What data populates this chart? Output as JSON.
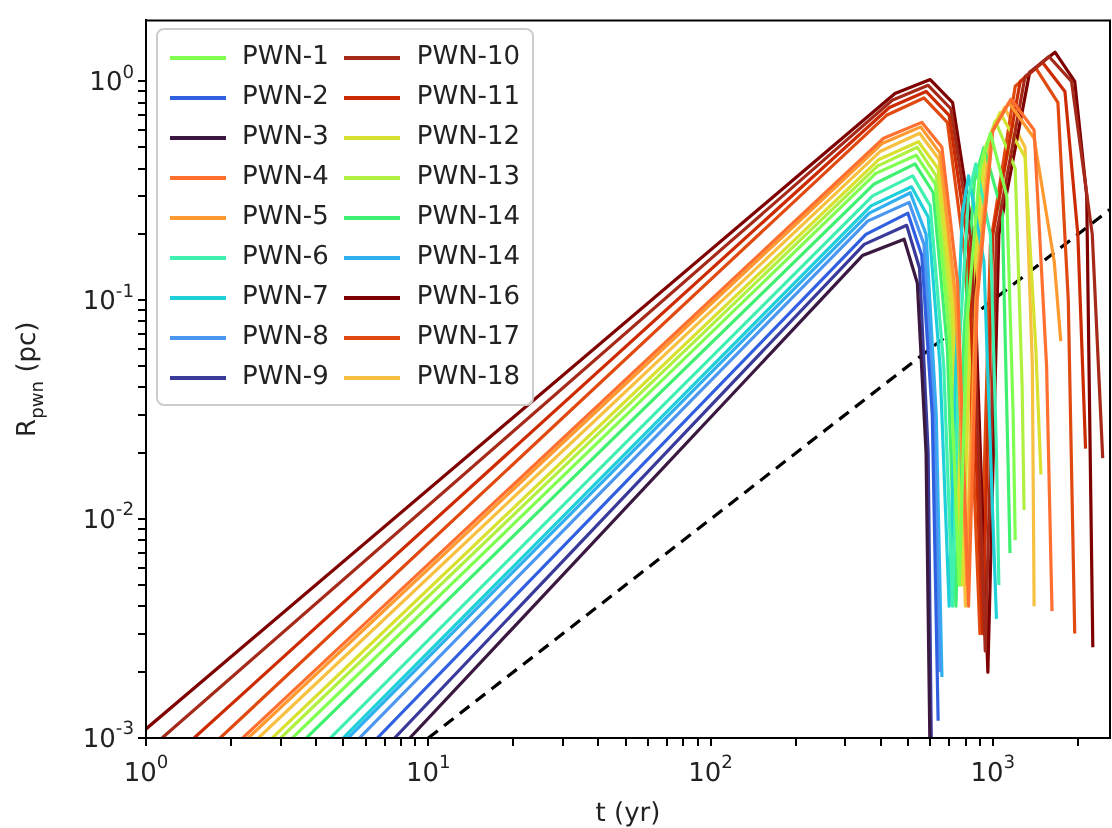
{
  "chart_data": {
    "type": "line",
    "xlabel": "t (yr)",
    "ylabel": "R$_{pwn}$ (pc)",
    "log": "xy",
    "grid": false,
    "legend": "top left",
    "marker": "none",
    "xlim": [
      1,
      2600
    ],
    "ylim": [
      0.001,
      1.9
    ],
    "xticks": [
      {
        "value": 1,
        "label": "10$^{0}$"
      },
      {
        "value": 2,
        "label": null
      },
      {
        "value": 3,
        "label": null
      },
      {
        "value": 4,
        "label": null
      },
      {
        "value": 5,
        "label": null
      },
      {
        "value": 6,
        "label": null
      },
      {
        "value": 7,
        "label": null
      },
      {
        "value": 8,
        "label": null
      },
      {
        "value": 9,
        "label": null
      },
      {
        "value": 10,
        "label": "10$^{1}$"
      },
      {
        "value": 20,
        "label": null
      },
      {
        "value": 30,
        "label": null
      },
      {
        "value": 40,
        "label": null
      },
      {
        "value": 50,
        "label": null
      },
      {
        "value": 60,
        "label": null
      },
      {
        "value": 70,
        "label": null
      },
      {
        "value": 80,
        "label": null
      },
      {
        "value": 90,
        "label": null
      },
      {
        "value": 100,
        "label": "10$^{2}$"
      },
      {
        "value": 200,
        "label": null
      },
      {
        "value": 300,
        "label": null
      },
      {
        "value": 400,
        "label": null
      },
      {
        "value": 500,
        "label": null
      },
      {
        "value": 600,
        "label": null
      },
      {
        "value": 700,
        "label": null
      },
      {
        "value": 800,
        "label": null
      },
      {
        "value": 900,
        "label": null
      },
      {
        "value": 1000,
        "label": "10$^{3}$"
      },
      {
        "value": 2000,
        "label": null
      }
    ],
    "yticks": [
      {
        "value": 0.001,
        "label": "10$^{-3}$"
      },
      {
        "value": 0.002,
        "label": null
      },
      {
        "value": 0.003,
        "label": null
      },
      {
        "value": 0.004,
        "label": null
      },
      {
        "value": 0.005,
        "label": null
      },
      {
        "value": 0.006,
        "label": null
      },
      {
        "value": 0.007,
        "label": null
      },
      {
        "value": 0.008,
        "label": null
      },
      {
        "value": 0.009,
        "label": null
      },
      {
        "value": 0.01,
        "label": "10$^{-2}$"
      },
      {
        "value": 0.02,
        "label": null
      },
      {
        "value": 0.03,
        "label": null
      },
      {
        "value": 0.04,
        "label": null
      },
      {
        "value": 0.05,
        "label": null
      },
      {
        "value": 0.06,
        "label": null
      },
      {
        "value": 0.07,
        "label": null
      },
      {
        "value": 0.08,
        "label": null
      },
      {
        "value": 0.09,
        "label": null
      },
      {
        "value": 0.1,
        "label": "10$^{-1}$"
      },
      {
        "value": 0.2,
        "label": null
      },
      {
        "value": 0.3,
        "label": null
      },
      {
        "value": 0.4,
        "label": null
      },
      {
        "value": 0.5,
        "label": null
      },
      {
        "value": 0.6,
        "label": null
      },
      {
        "value": 0.7,
        "label": null
      },
      {
        "value": 0.8,
        "label": null
      },
      {
        "value": 0.9,
        "label": null
      },
      {
        "value": 1,
        "label": "10$^{0}$"
      }
    ],
    "series": [
      {
        "name": "PWN-1",
        "color": "#80ff50",
        "x": [
          3.3,
          385,
          535,
          625,
          700,
          760,
          810,
          900,
          980,
          1120,
          1180,
          1200
        ],
        "values": [
          0.001,
          0.38,
          0.46,
          0.34,
          0.07,
          0.005,
          0.08,
          0.4,
          0.58,
          0.3,
          0.03,
          0.008
        ]
      },
      {
        "name": "PWN-2",
        "color": "#3060e0",
        "x": [
          6.6,
          355,
          500,
          560,
          610,
          640
        ],
        "values": [
          0.001,
          0.2,
          0.25,
          0.16,
          0.03,
          0.0012
        ]
      },
      {
        "name": "PWN-3",
        "color": "#3a1840",
        "x": [
          8.6,
          345,
          485,
          540,
          580,
          598
        ],
        "values": [
          0.001,
          0.16,
          0.19,
          0.12,
          0.02,
          0.001
        ]
      },
      {
        "name": "PWN-4",
        "color": "#ff7030",
        "x": [
          2.2,
          410,
          560,
          660,
          750,
          820,
          880,
          1000,
          1160,
          1400,
          1550,
          1620
        ],
        "values": [
          0.001,
          0.55,
          0.65,
          0.5,
          0.12,
          0.004,
          0.1,
          0.6,
          0.83,
          0.6,
          0.05,
          0.0038
        ]
      },
      {
        "name": "PWN-5",
        "color": "#ff9a30",
        "x": [
          2.3,
          405,
          555,
          650,
          740,
          810,
          870,
          990,
          1140,
          1400,
          1650,
          1740
        ],
        "values": [
          0.001,
          0.52,
          0.62,
          0.47,
          0.1,
          0.005,
          0.1,
          0.58,
          0.8,
          0.55,
          0.15,
          0.065
        ]
      },
      {
        "name": "PWN-6",
        "color": "#40f0b0",
        "x": [
          4.5,
          375,
          520,
          600,
          670,
          720,
          760,
          820,
          870,
          980,
          1030,
          1050
        ],
        "values": [
          0.001,
          0.3,
          0.37,
          0.27,
          0.05,
          0.004,
          0.06,
          0.3,
          0.42,
          0.2,
          0.02,
          0.005
        ]
      },
      {
        "name": "PWN-7",
        "color": "#20d0d8",
        "x": [
          5,
          370,
          515,
          590,
          650,
          700,
          740,
          780,
          820,
          930,
          1000,
          1030
        ],
        "values": [
          0.001,
          0.27,
          0.33,
          0.24,
          0.05,
          0.004,
          0.05,
          0.25,
          0.37,
          0.15,
          0.01,
          0.0035
        ]
      },
      {
        "name": "PWN-8",
        "color": "#4a96f0",
        "x": [
          5.7,
          360,
          505,
          570,
          620,
          650
        ],
        "values": [
          0.001,
          0.23,
          0.28,
          0.18,
          0.03,
          0.002
        ]
      },
      {
        "name": "PWN-9",
        "color": "#3a3a9a",
        "x": [
          7.6,
          350,
          495,
          550,
          590,
          605
        ],
        "values": [
          0.001,
          0.18,
          0.22,
          0.14,
          0.02,
          0.001
        ]
      },
      {
        "name": "PWN-10",
        "color": "#a52a1a",
        "x": [
          1.14,
          440,
          590,
          710,
          840,
          940,
          1030,
          1300,
          1580,
          1900,
          2250,
          2450
        ],
        "values": [
          0.001,
          0.82,
          0.96,
          0.75,
          0.18,
          0.0025,
          0.2,
          1.05,
          1.3,
          1,
          0.2,
          0.019
        ]
      },
      {
        "name": "PWN-11",
        "color": "#cc2a00",
        "x": [
          1.48,
          430,
          580,
          700,
          820,
          920,
          1000,
          1250,
          1500,
          1800,
          2000,
          2130
        ],
        "values": [
          0.001,
          0.76,
          0.9,
          0.7,
          0.17,
          0.003,
          0.2,
          1,
          1.22,
          0.9,
          0.2,
          0.021
        ]
      },
      {
        "name": "PWN-12",
        "color": "#d8e030",
        "x": [
          2.8,
          395,
          545,
          640,
          720,
          780,
          840,
          940,
          1060,
          1300,
          1420,
          1480
        ],
        "values": [
          0.001,
          0.44,
          0.53,
          0.4,
          0.09,
          0.005,
          0.1,
          0.5,
          0.72,
          0.45,
          0.06,
          0.016
        ]
      },
      {
        "name": "PWN-13",
        "color": "#b0f040",
        "x": [
          3,
          390,
          540,
          630,
          710,
          770,
          820,
          920,
          1020,
          1200,
          1270,
          1290
        ],
        "values": [
          0.001,
          0.41,
          0.5,
          0.37,
          0.08,
          0.005,
          0.09,
          0.45,
          0.66,
          0.4,
          0.04,
          0.011
        ]
      },
      {
        "name": "PWN-14",
        "color": "#40f070",
        "x": [
          3.7,
          380,
          530,
          615,
          690,
          740,
          790,
          860,
          930,
          1080,
          1130,
          1150
        ],
        "values": [
          0.001,
          0.34,
          0.42,
          0.31,
          0.06,
          0.004,
          0.07,
          0.35,
          0.5,
          0.25,
          0.02,
          0.007
        ]
      },
      {
        "name": "PWN-14",
        "color": "#30b0f0",
        "x": [
          5.2,
          365,
          510,
          580,
          630,
          660
        ],
        "values": [
          0.001,
          0.25,
          0.31,
          0.2,
          0.03,
          0.0019
        ]
      },
      {
        "name": "PWN-16",
        "color": "#7f0000",
        "x": [
          1,
          450,
          600,
          720,
          850,
          960,
          1050,
          1350,
          1660,
          1950,
          2150,
          2260
        ],
        "values": [
          0.0011,
          0.88,
          1.02,
          0.8,
          0.2,
          0.002,
          0.2,
          1.1,
          1.36,
          1,
          0.3,
          0.0026
        ]
      },
      {
        "name": "PWN-17",
        "color": "#e04a10",
        "x": [
          1.83,
          420,
          570,
          690,
          800,
          900,
          980,
          1200,
          1420,
          1700,
          1850,
          1950
        ],
        "values": [
          0.001,
          0.7,
          0.84,
          0.65,
          0.15,
          0.003,
          0.18,
          0.95,
          1.15,
          0.8,
          0.1,
          0.003
        ]
      },
      {
        "name": "PWN-18",
        "color": "#f8c040",
        "x": [
          2.5,
          400,
          550,
          645,
          730,
          800,
          860,
          970,
          1100,
          1300,
          1380,
          1400
        ],
        "values": [
          0.001,
          0.48,
          0.58,
          0.44,
          0.1,
          0.004,
          0.1,
          0.55,
          0.76,
          0.5,
          0.05,
          0.004
        ]
      },
      {
        "color": "#000000",
        "line_style": "dashed",
        "x": [
          10,
          2600
        ],
        "values": [
          0.001,
          0.26
        ]
      }
    ]
  }
}
